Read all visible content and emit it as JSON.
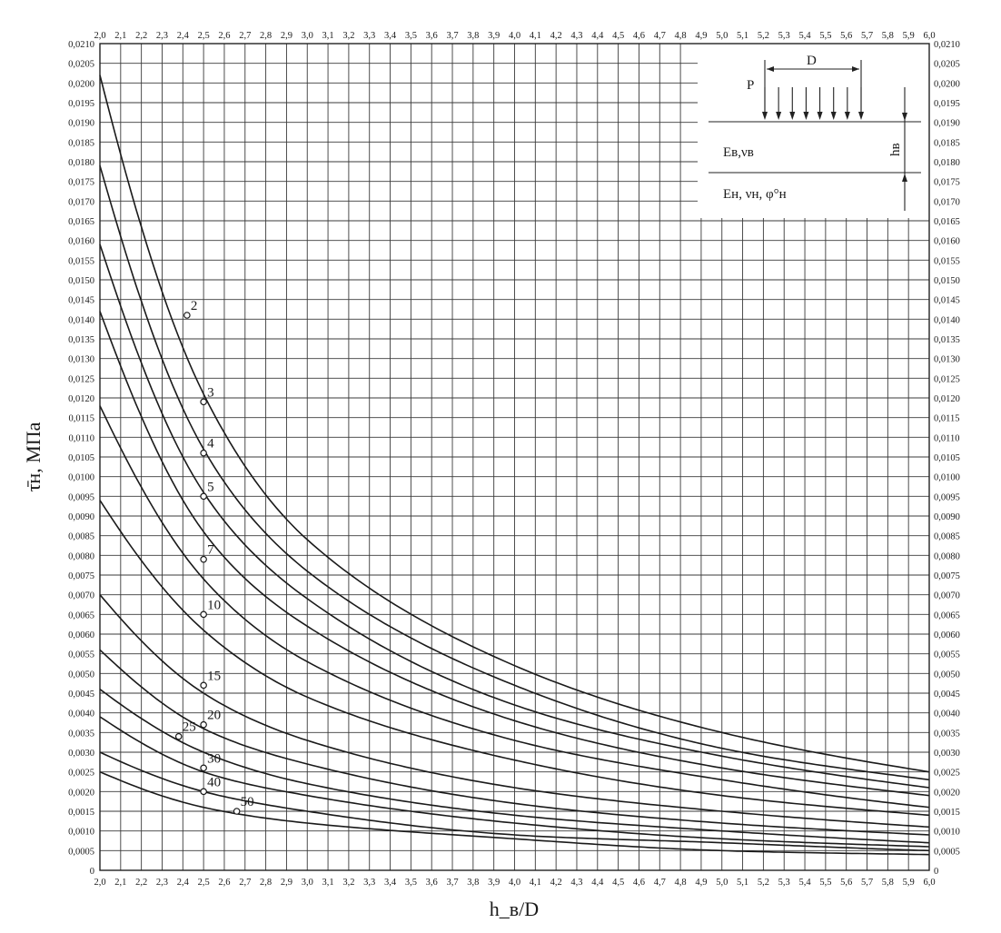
{
  "chart_data": {
    "type": "line",
    "xlabel": "h_в/D",
    "ylabel": "τ̄н, МПа",
    "xlim": [
      2.0,
      6.0
    ],
    "ylim": [
      0,
      0.021
    ],
    "x_ticks": [
      "2,0",
      "2,1",
      "2,2",
      "2,3",
      "2,4",
      "2,5",
      "2,6",
      "2,7",
      "2,8",
      "2,9",
      "3,0",
      "3,1",
      "3,2",
      "3,3",
      "3,4",
      "3,5",
      "3,6",
      "3,7",
      "3,8",
      "3,9",
      "4,0",
      "4,1",
      "4,2",
      "4,3",
      "4,4",
      "4,5",
      "4,6",
      "4,7",
      "4,8",
      "4,9",
      "5,0",
      "5,1",
      "5,2",
      "5,3",
      "5,4",
      "5,5",
      "5,6",
      "5,7",
      "5,8",
      "5,9",
      "6,0"
    ],
    "y_ticks": [
      "0",
      "0,0005",
      "0,0010",
      "0,0015",
      "0,0020",
      "0,0025",
      "0,0030",
      "0,0035",
      "0,0040",
      "0,0045",
      "0,0050",
      "0,0055",
      "0,0060",
      "0,0065",
      "0,0070",
      "0,0075",
      "0,0080",
      "0,0085",
      "0,0090",
      "0,0095",
      "0,0100",
      "0,0105",
      "0,0110",
      "0,0115",
      "0,0120",
      "0,0125",
      "0,0130",
      "0,0135",
      "0,0140",
      "0,0145",
      "0,0150",
      "0,0155",
      "0,0160",
      "0,0165",
      "0,0170",
      "0,0175",
      "0,0180",
      "0,0185",
      "0,0190",
      "0,0195",
      "0,0200",
      "0,0205",
      "0,0210"
    ],
    "grid": true,
    "series": [
      {
        "name": "2",
        "x": [
          2.0,
          2.5,
          3.0,
          4.0,
          5.0,
          6.0
        ],
        "values": [
          0.0202,
          0.0121,
          0.0084,
          0.0052,
          0.0035,
          0.0025
        ],
        "marker_x": 2.42,
        "marker_y": 0.0141
      },
      {
        "name": "3",
        "x": [
          2.0,
          2.5,
          3.0,
          4.0,
          5.0,
          6.0
        ],
        "values": [
          0.0179,
          0.0107,
          0.0076,
          0.0047,
          0.0031,
          0.0023
        ],
        "marker_x": 2.5,
        "marker_y": 0.0119
      },
      {
        "name": "4",
        "x": [
          2.0,
          2.5,
          3.0,
          4.0,
          5.0,
          6.0
        ],
        "values": [
          0.0159,
          0.0096,
          0.0069,
          0.0042,
          0.0029,
          0.0021
        ],
        "marker_x": 2.5,
        "marker_y": 0.0106
      },
      {
        "name": "5",
        "x": [
          2.0,
          2.5,
          3.0,
          4.0,
          5.0,
          6.0
        ],
        "values": [
          0.0142,
          0.0086,
          0.0062,
          0.0038,
          0.0026,
          0.0019
        ],
        "marker_x": 2.5,
        "marker_y": 0.0095
      },
      {
        "name": "7",
        "x": [
          2.0,
          2.5,
          3.0,
          4.0,
          5.0,
          6.0
        ],
        "values": [
          0.0118,
          0.0074,
          0.0053,
          0.0033,
          0.0023,
          0.0016
        ],
        "marker_x": 2.5,
        "marker_y": 0.0079
      },
      {
        "name": "10",
        "x": [
          2.0,
          2.5,
          3.0,
          4.0,
          5.0,
          6.0
        ],
        "values": [
          0.0094,
          0.0061,
          0.0044,
          0.0028,
          0.0019,
          0.0014
        ],
        "marker_x": 2.5,
        "marker_y": 0.0065
      },
      {
        "name": "15",
        "x": [
          2.0,
          2.5,
          3.0,
          4.0,
          5.0,
          6.0
        ],
        "values": [
          0.007,
          0.0045,
          0.0033,
          0.0021,
          0.0015,
          0.0011
        ],
        "marker_x": 2.5,
        "marker_y": 0.0047
      },
      {
        "name": "20",
        "x": [
          2.0,
          2.5,
          3.0,
          4.0,
          5.0,
          6.0
        ],
        "values": [
          0.0056,
          0.0036,
          0.0027,
          0.0017,
          0.0012,
          0.0009
        ],
        "marker_x": 2.5,
        "marker_y": 0.0037
      },
      {
        "name": "25",
        "x": [
          2.0,
          2.5,
          3.0,
          4.0,
          5.0,
          6.0
        ],
        "values": [
          0.0046,
          0.003,
          0.0022,
          0.0014,
          0.001,
          0.0007
        ],
        "marker_x": 2.38,
        "marker_y": 0.0034
      },
      {
        "name": "30",
        "x": [
          2.0,
          2.5,
          3.0,
          4.0,
          5.0,
          6.0
        ],
        "values": [
          0.0039,
          0.0025,
          0.0019,
          0.0012,
          0.0008,
          0.0006
        ],
        "marker_x": 2.5,
        "marker_y": 0.0026
      },
      {
        "name": "40",
        "x": [
          2.0,
          2.5,
          3.0,
          4.0,
          5.0,
          6.0
        ],
        "values": [
          0.003,
          0.002,
          0.0015,
          0.0009,
          0.0007,
          0.0005
        ],
        "marker_x": 2.5,
        "marker_y": 0.002
      },
      {
        "name": "50",
        "x": [
          2.0,
          2.5,
          3.0,
          4.0,
          5.0,
          6.0
        ],
        "values": [
          0.0025,
          0.0016,
          0.0012,
          0.0008,
          0.0005,
          0.0004
        ],
        "marker_x": 2.66,
        "marker_y": 0.0015
      }
    ],
    "inset": {
      "load_label": "P",
      "width_label": "D",
      "upper_layer": "Eв,νв",
      "lower_layer": "Eн, νн, φ°н",
      "thickness_label": "hв"
    }
  }
}
